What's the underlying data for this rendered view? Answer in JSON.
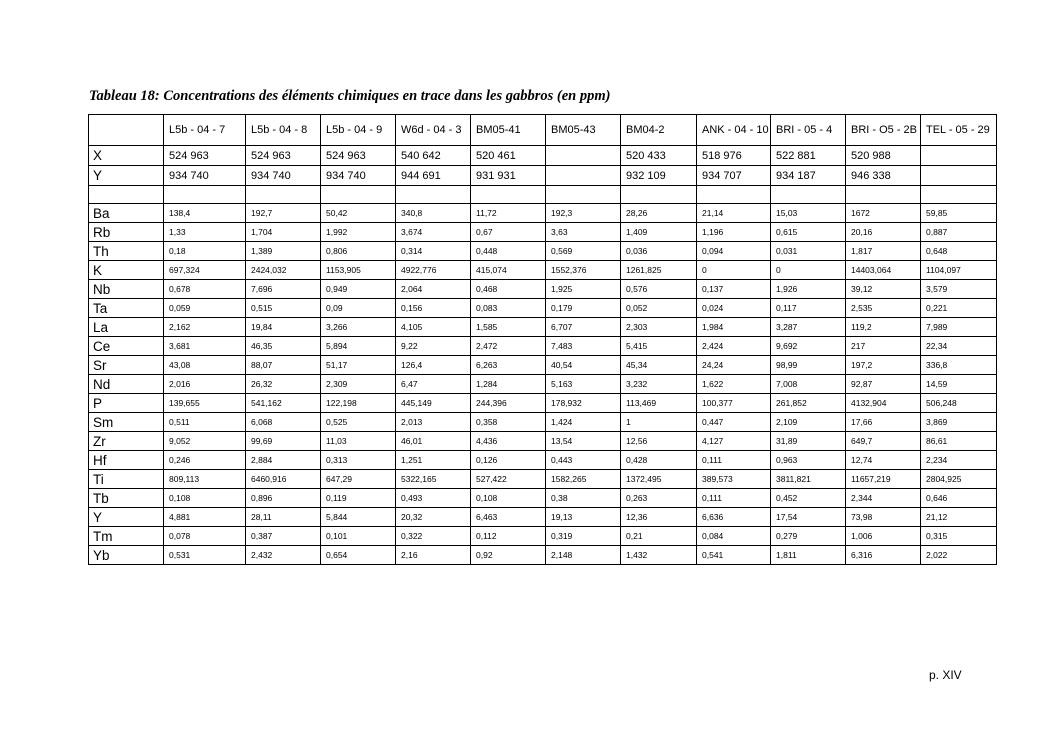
{
  "title": "Tableau 18: Concentrations des éléments chimiques en trace dans les gabbros (en ppm)",
  "columns": [
    "",
    "L5b - 04 - 7",
    "L5b - 04 - 8",
    "L5b - 04 - 9",
    "W6d - 04 - 3",
    "BM05-41",
    "BM05-43",
    "BM04-2",
    "ANK - 04 - 10",
    "BRI - 05 - 4",
    "BRI - O5 - 2B",
    "TEL - 05 - 29"
  ],
  "coords": [
    {
      "label": "X",
      "values": [
        "524 963",
        "524 963",
        "524 963",
        "540 642",
        "520 461",
        "",
        "520 433",
        "518 976",
        "522 881",
        "520 988",
        ""
      ]
    },
    {
      "label": "Y",
      "values": [
        "934 740",
        "934 740",
        "934 740",
        "944 691",
        "931 931",
        "",
        "932 109",
        "934 707",
        "934 187",
        "946 338",
        ""
      ]
    }
  ],
  "rows": [
    {
      "label": "Ba",
      "values": [
        "138,4",
        "192,7",
        "50,42",
        "340,8",
        "11,72",
        "192,3",
        "28,26",
        "21,14",
        "15,03",
        "1672",
        "59,85"
      ]
    },
    {
      "label": "Rb",
      "values": [
        "1,33",
        "1,704",
        "1,992",
        "3,674",
        "0,67",
        "3,63",
        "1,409",
        "1,196",
        "0,615",
        "20,16",
        "0,887"
      ]
    },
    {
      "label": "Th",
      "values": [
        "0,18",
        "1,389",
        "0,806",
        "0,314",
        "0,448",
        "0,569",
        "0,036",
        "0,094",
        "0,031",
        "1,817",
        "0,648"
      ]
    },
    {
      "label": "K",
      "values": [
        "697,324",
        "2424,032",
        "1153,905",
        "4922,776",
        "415,074",
        "1552,376",
        "1261,825",
        "0",
        "0",
        "14403,064",
        "1104,097"
      ]
    },
    {
      "label": "Nb",
      "values": [
        "0,678",
        "7,696",
        "0,949",
        "2,064",
        "0,468",
        "1,925",
        "0,576",
        "0,137",
        "1,926",
        "39,12",
        "3,579"
      ]
    },
    {
      "label": "Ta",
      "values": [
        "0,059",
        "0,515",
        "0,09",
        "0,156",
        "0,083",
        "0,179",
        "0,052",
        "0,024",
        "0,117",
        "2,535",
        "0,221"
      ]
    },
    {
      "label": "La",
      "values": [
        "2,162",
        "19,84",
        "3,266",
        "4,105",
        "1,585",
        "6,707",
        "2,303",
        "1,984",
        "3,287",
        "119,2",
        "7,989"
      ]
    },
    {
      "label": "Ce",
      "values": [
        "3,681",
        "46,35",
        "5,894",
        "9,22",
        "2,472",
        "7,483",
        "5,415",
        "2,424",
        "9,692",
        "217",
        "22,34"
      ]
    },
    {
      "label": "Sr",
      "values": [
        "43,08",
        "88,07",
        "51,17",
        "126,4",
        "6,263",
        "40,54",
        "45,34",
        "24,24",
        "98,99",
        "197,2",
        "336,8"
      ]
    },
    {
      "label": "Nd",
      "values": [
        "2,016",
        "26,32",
        "2,309",
        "6,47",
        "1,284",
        "5,163",
        "3,232",
        "1,622",
        "7,008",
        "92,87",
        "14,59"
      ]
    },
    {
      "label": "P",
      "values": [
        "139,655",
        "541,162",
        "122,198",
        "445,149",
        "244,396",
        "178,932",
        "113,469",
        "100,377",
        "261,852",
        "4132,904",
        "506,248"
      ]
    },
    {
      "label": "Sm",
      "values": [
        "0,511",
        "6,068",
        "0,525",
        "2,013",
        "0,358",
        "1,424",
        "1",
        "0,447",
        "2,109",
        "17,66",
        "3,869"
      ]
    },
    {
      "label": "Zr",
      "values": [
        "9,052",
        "99,69",
        "11,03",
        "46,01",
        "4,436",
        "13,54",
        "12,56",
        "4,127",
        "31,89",
        "649,7",
        "86,61"
      ]
    },
    {
      "label": "Hf",
      "values": [
        "0,246",
        "2,884",
        "0,313",
        "1,251",
        "0,126",
        "0,443",
        "0,428",
        "0,111",
        "0,963",
        "12,74",
        "2,234"
      ]
    },
    {
      "label": "Ti",
      "values": [
        "809,113",
        "6460,916",
        "647,29",
        "5322,165",
        "527,422",
        "1582,265",
        "1372,495",
        "389,573",
        "3811,821",
        "11657,219",
        "2804,925"
      ]
    },
    {
      "label": "Tb",
      "values": [
        "0,108",
        "0,896",
        "0,119",
        "0,493",
        "0,108",
        "0,38",
        "0,263",
        "0,111",
        "0,452",
        "2,344",
        "0,646"
      ]
    },
    {
      "label": "Y",
      "values": [
        "4,881",
        "28,11",
        "5,844",
        "20,32",
        "6,463",
        "19,13",
        "12,36",
        "6,636",
        "17,54",
        "73,98",
        "21,12"
      ]
    },
    {
      "label": "Tm",
      "values": [
        "0,078",
        "0,387",
        "0,101",
        "0,322",
        "0,112",
        "0,319",
        "0,21",
        "0,084",
        "0,279",
        "1,006",
        "0,315"
      ]
    },
    {
      "label": "Yb",
      "values": [
        "0,531",
        "2,432",
        "0,654",
        "2,16",
        "0,92",
        "2,148",
        "1,432",
        "0,541",
        "1,811",
        "6,316",
        "2,022"
      ]
    }
  ],
  "page_number": "p. XIV"
}
